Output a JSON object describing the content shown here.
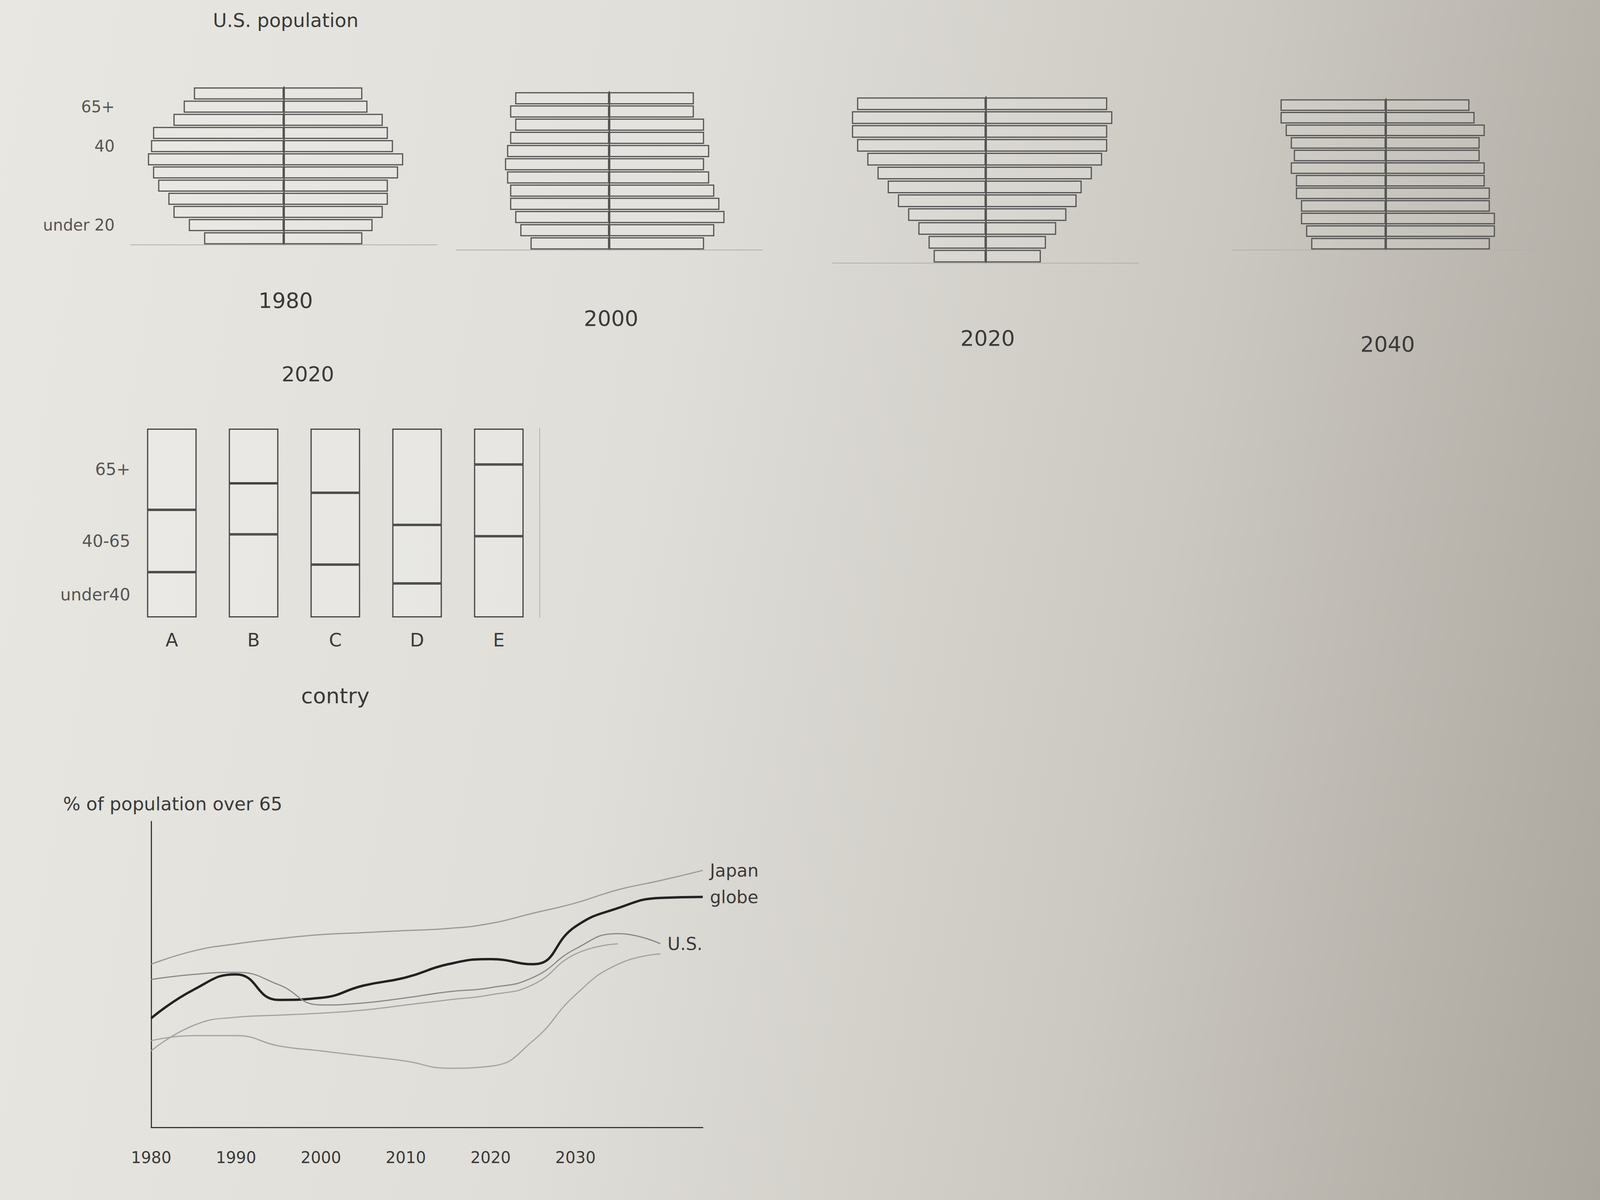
{
  "chart_data": [
    {
      "type": "pyramid",
      "title": "U.S. population",
      "xlabel": "1980",
      "categories": [
        null,
        "65+",
        null,
        null,
        "40",
        null,
        null,
        null,
        null,
        null,
        "under 20",
        null
      ],
      "xlim": [
        0,
        150
      ],
      "tick_labels": "y",
      "series": [
        {
          "color": "#555555",
          "values": [
            88,
            98,
            108,
            128,
            130,
            133,
            128,
            123,
            113,
            108,
            93,
            78
          ]
        },
        {
          "color": "#555555",
          "values": [
            77,
            82,
            97,
            102,
            107,
            117,
            112,
            102,
            102,
            97,
            87,
            77
          ]
        }
      ]
    },
    {
      "type": "pyramid",
      "xlabel": "2000",
      "categories": [
        null,
        null,
        null,
        null,
        null,
        null,
        null,
        null,
        null,
        null,
        null,
        null
      ],
      "xlim": [
        0,
        150
      ],
      "tick_labels": false,
      "series": [
        {
          "color": "#555555",
          "values": [
            92,
            97,
            92,
            97,
            100,
            102,
            100,
            97,
            97,
            92,
            87,
            77
          ]
        },
        {
          "color": "#555555",
          "values": [
            83,
            83,
            93,
            93,
            98,
            93,
            98,
            103,
            108,
            113,
            103,
            93
          ]
        }
      ]
    },
    {
      "type": "pyramid",
      "xlabel": "2020",
      "categories": [
        null,
        null,
        null,
        null,
        null,
        null,
        null,
        null,
        null,
        null,
        null,
        null
      ],
      "xlim": [
        0,
        150
      ],
      "tick_labels": false,
      "series": [
        {
          "color": "#555555",
          "values": [
            126,
            131,
            131,
            126,
            116,
            106,
            96,
            86,
            76,
            66,
            56,
            51
          ]
        },
        {
          "color": "#555555",
          "values": [
            119,
            124,
            119,
            119,
            114,
            104,
            94,
            89,
            79,
            69,
            59,
            54
          ]
        }
      ]
    },
    {
      "type": "pyramid",
      "xlabel": "2040",
      "categories": [
        null,
        null,
        null,
        null,
        null,
        null,
        null,
        null,
        null,
        null,
        null,
        null
      ],
      "xlim": [
        0,
        150
      ],
      "tick_labels": false,
      "series": [
        {
          "color": "#555555",
          "values": [
            103,
            103,
            98,
            93,
            90,
            93,
            88,
            88,
            83,
            83,
            78,
            73
          ]
        },
        {
          "color": "#555555",
          "values": [
            82,
            87,
            97,
            92,
            92,
            97,
            97,
            102,
            102,
            107,
            107,
            102
          ]
        }
      ]
    },
    {
      "type": "bar",
      "stacked": true,
      "title": "2020",
      "xlabel": "contry",
      "categories": [
        "A",
        "B",
        "C",
        "D",
        "E"
      ],
      "ylim": [
        0,
        100
      ],
      "tick_labels": "x",
      "series": [
        {
          "name": "under40",
          "color": "#444444",
          "values": [
            24,
            44,
            28,
            18,
            43
          ]
        },
        {
          "name": "40-65",
          "color": "#444444",
          "values": [
            33,
            27,
            38,
            31,
            38
          ]
        },
        {
          "name": "65+",
          "color": "#444444",
          "values": [
            43,
            29,
            34,
            51,
            19
          ]
        }
      ]
    },
    {
      "type": "line",
      "title": "% of population over 65",
      "x": [
        1980,
        1985,
        1990,
        1995,
        2000,
        2005,
        2010,
        2015,
        2020,
        2025,
        2030,
        2035,
        2040,
        2045
      ],
      "xlim": [
        1980,
        2045
      ],
      "xticks": [
        1980,
        1990,
        2000,
        2010,
        2020,
        2030
      ],
      "ylim": [
        0,
        30
      ],
      "tick_labels": "x",
      "series": [
        {
          "name": "Japan",
          "color": "#999999",
          "line_style": "thin",
          "values": [
            16.0,
            17.3,
            18.0,
            18.5,
            18.9,
            19.1,
            19.3,
            19.5,
            20.0,
            21.0,
            22.0,
            23.3,
            24.2,
            25.2
          ]
        },
        {
          "name": "globe",
          "color": "#222222",
          "line_style": "thick",
          "values": [
            10.7,
            13.5,
            15.0,
            12.5,
            12.7,
            13.9,
            14.7,
            16.0,
            16.5,
            16.0,
            19.7,
            21.5,
            22.5,
            22.6
          ]
        },
        {
          "name": "U.S.",
          "color": "#8a8a8a",
          "line_style": "thin",
          "values": [
            14.5,
            15.0,
            15.2,
            14.0,
            12.0,
            12.2,
            12.7,
            13.3,
            13.7,
            14.7,
            17.5,
            19.0,
            18.0,
            null
          ]
        },
        {
          "color": "#a3a3a3",
          "line_style": "thin",
          "values": [
            7.5,
            10.0,
            10.8,
            11.0,
            11.2,
            11.5,
            12.0,
            12.5,
            13.0,
            14.0,
            17.0,
            18.0,
            null,
            null
          ]
        },
        {
          "color": "#a3a3a3",
          "line_style": "thin",
          "values": [
            8.5,
            9.0,
            9.0,
            8.0,
            7.5,
            7.0,
            6.5,
            5.8,
            6.0,
            8.5,
            13.0,
            16.0,
            17.0,
            null
          ]
        }
      ]
    }
  ]
}
